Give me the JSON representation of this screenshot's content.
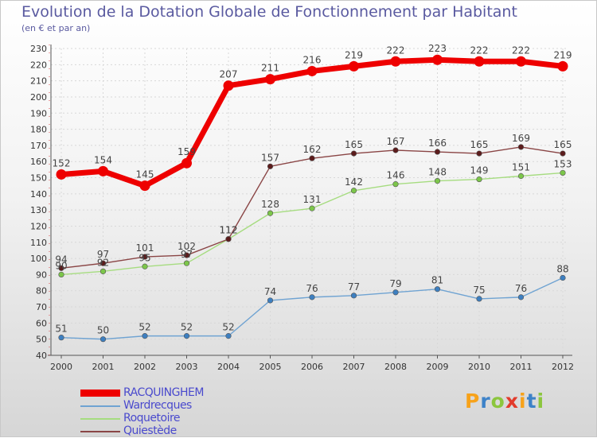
{
  "header": {
    "title": "Evolution de la Dotation Globale de Fonctionnement par Habitant",
    "subtitle": "(en € et par an)"
  },
  "chart_data": {
    "type": "line",
    "title": "Evolution de la Dotation Globale de Fonctionnement par Habitant",
    "subtitle": "(en € et par an)",
    "xlabel": "",
    "ylabel": "",
    "categories": [
      "2000",
      "2001",
      "2002",
      "2003",
      "2004",
      "2005",
      "2006",
      "2007",
      "2008",
      "2009",
      "2010",
      "2011",
      "2012"
    ],
    "ylim": [
      40,
      230
    ],
    "yticks": [
      40,
      50,
      60,
      70,
      80,
      90,
      100,
      110,
      120,
      130,
      140,
      150,
      160,
      170,
      180,
      190,
      200,
      210,
      220,
      230
    ],
    "grid": true,
    "legend": "bottom-left",
    "series": [
      {
        "name": "RACQUINGHEM",
        "color": "#ee0000",
        "marker_color": "#ee0000",
        "values": [
          152,
          154,
          145,
          159,
          207,
          211,
          216,
          219,
          222,
          223,
          222,
          222,
          219
        ],
        "emphasis": true
      },
      {
        "name": "Wardrecques",
        "color": "#6fa3d2",
        "marker_color": "#3d7fc0",
        "values": [
          51,
          50,
          52,
          52,
          52,
          74,
          76,
          77,
          79,
          81,
          75,
          76,
          88
        ]
      },
      {
        "name": "Roquetoire",
        "color": "#a6dc80",
        "marker_color": "#7cc64a",
        "values": [
          90,
          92,
          95,
          97,
          112,
          128,
          131,
          142,
          146,
          148,
          149,
          151,
          153
        ]
      },
      {
        "name": "Quiestède",
        "color": "#8a4545",
        "marker_color": "#5c1c1c",
        "values": [
          94,
          97,
          101,
          102,
          112,
          157,
          162,
          165,
          167,
          166,
          165,
          169,
          165
        ]
      }
    ]
  },
  "logo": {
    "letters": [
      "P",
      "r",
      "o",
      "x",
      "i",
      "t",
      "i"
    ],
    "colors": [
      "#f7a21a",
      "#3d82c8",
      "#8cc63e",
      "#e23b2c",
      "#f7a21a",
      "#3d82c8",
      "#8cc63e"
    ]
  }
}
